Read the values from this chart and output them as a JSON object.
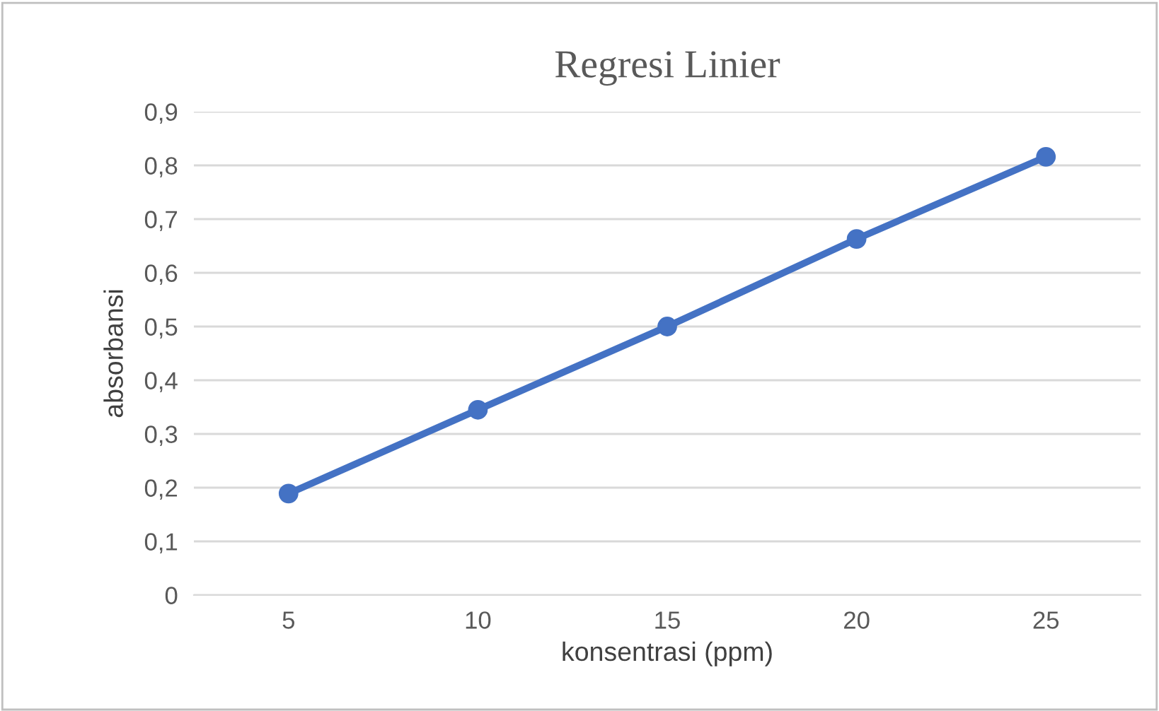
{
  "chart_data": {
    "type": "line",
    "title": "Regresi Linier",
    "xlabel": "konsentrasi (ppm)",
    "ylabel": "absorbansi",
    "categories": [
      "5",
      "10",
      "15",
      "20",
      "25"
    ],
    "series": [
      {
        "color": "#4472c4",
        "values": [
          0.189,
          0.345,
          0.5,
          0.663,
          0.816
        ]
      }
    ],
    "ylim": [
      0,
      0.9
    ],
    "yticks": [
      0,
      {
        "value": 0.1,
        "label": "0,1"
      },
      {
        "value": 0.2,
        "label": "0,2"
      },
      {
        "value": 0.3,
        "label": "0,3"
      },
      {
        "value": 0.4,
        "label": "0,4"
      },
      {
        "value": 0.5,
        "label": "0,5"
      },
      {
        "value": 0.6,
        "label": "0,6"
      },
      {
        "value": 0.7,
        "label": "0,7"
      },
      {
        "value": 0.8,
        "label": "0,8"
      },
      {
        "value": 0.9,
        "label": "0,9"
      }
    ],
    "grid": "y",
    "legend": false,
    "marker": "circle",
    "line_style": "solid"
  }
}
